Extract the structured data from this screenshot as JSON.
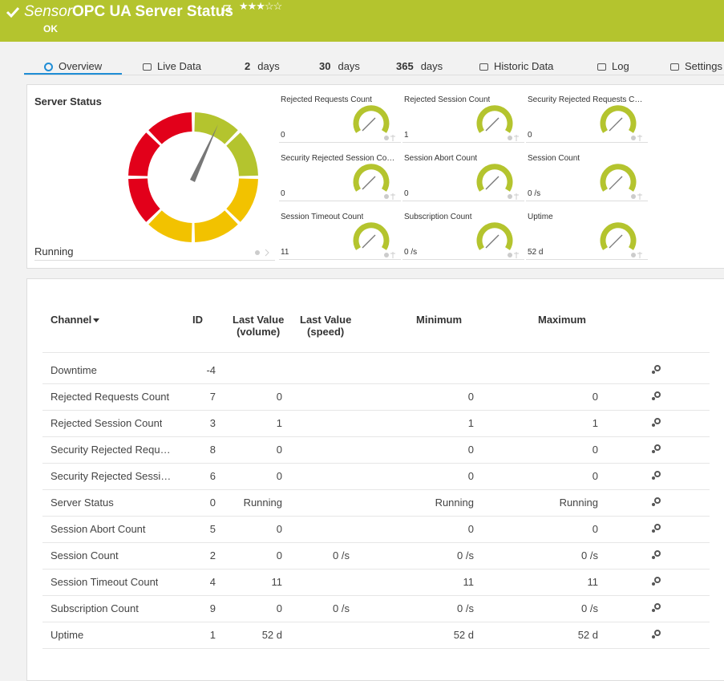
{
  "header": {
    "prefix": "Sensor",
    "title": "OPC UA Server Status",
    "status": "OK"
  },
  "tabs": [
    {
      "label": "Overview"
    },
    {
      "label": "Live Data"
    },
    {
      "number": "2",
      "label": "days"
    },
    {
      "number": "30",
      "label": "days"
    },
    {
      "number": "365",
      "label": "days"
    },
    {
      "label": "Historic Data"
    },
    {
      "label": "Log"
    },
    {
      "label": "Settings"
    }
  ],
  "server_status": {
    "title": "Server Status",
    "value": "Running"
  },
  "gauges": [
    {
      "name": "Rejected Requests Count",
      "value": "0"
    },
    {
      "name": "Rejected Session Count",
      "value": "1"
    },
    {
      "name": "Security Rejected Requests C…",
      "value": "0"
    },
    {
      "name": "Security Rejected Session Co…",
      "value": "0"
    },
    {
      "name": "Session Abort Count",
      "value": "0"
    },
    {
      "name": "Session Count",
      "value": "0 /s"
    },
    {
      "name": "Session Timeout Count",
      "value": "11"
    },
    {
      "name": "Subscription Count",
      "value": "0 /s"
    },
    {
      "name": "Uptime",
      "value": "52 d"
    }
  ],
  "table": {
    "columns": {
      "channel": "Channel",
      "id": "ID",
      "volume": [
        "Last Value",
        "(volume)"
      ],
      "speed": [
        "Last Value",
        "(speed)"
      ],
      "minimum": "Minimum",
      "maximum": "Maximum"
    },
    "rows": [
      {
        "channel": "Downtime",
        "id": "-4"
      },
      {
        "channel": "Rejected Requests Count",
        "id": "7",
        "volume": "0",
        "minimum": "0",
        "maximum": "0"
      },
      {
        "channel": "Rejected Session Count",
        "id": "3",
        "volume": "1",
        "minimum": "1",
        "maximum": "1"
      },
      {
        "channel": "Security Rejected Requ…",
        "id": "8",
        "volume": "0",
        "minimum": "0",
        "maximum": "0"
      },
      {
        "channel": "Security Rejected Sessi…",
        "id": "6",
        "volume": "0",
        "minimum": "0",
        "maximum": "0"
      },
      {
        "channel": "Server Status",
        "id": "0",
        "volume": "Running",
        "minimum": "Running",
        "maximum": "Running"
      },
      {
        "channel": "Session Abort Count",
        "id": "5",
        "volume": "0",
        "minimum": "0",
        "maximum": "0"
      },
      {
        "channel": "Session Count",
        "id": "2",
        "volume": "0",
        "speed": "0 /s",
        "minimum": "0 /s",
        "maximum": "0 /s"
      },
      {
        "channel": "Session Timeout Count",
        "id": "4",
        "volume": "11",
        "minimum": "11",
        "maximum": "11"
      },
      {
        "channel": "Subscription Count",
        "id": "9",
        "volume": "0",
        "speed": "0 /s",
        "minimum": "0 /s",
        "maximum": "0 /s"
      },
      {
        "channel": "Uptime",
        "id": "1",
        "volume": "52 d",
        "minimum": "52 d",
        "maximum": "52 d"
      }
    ]
  }
}
